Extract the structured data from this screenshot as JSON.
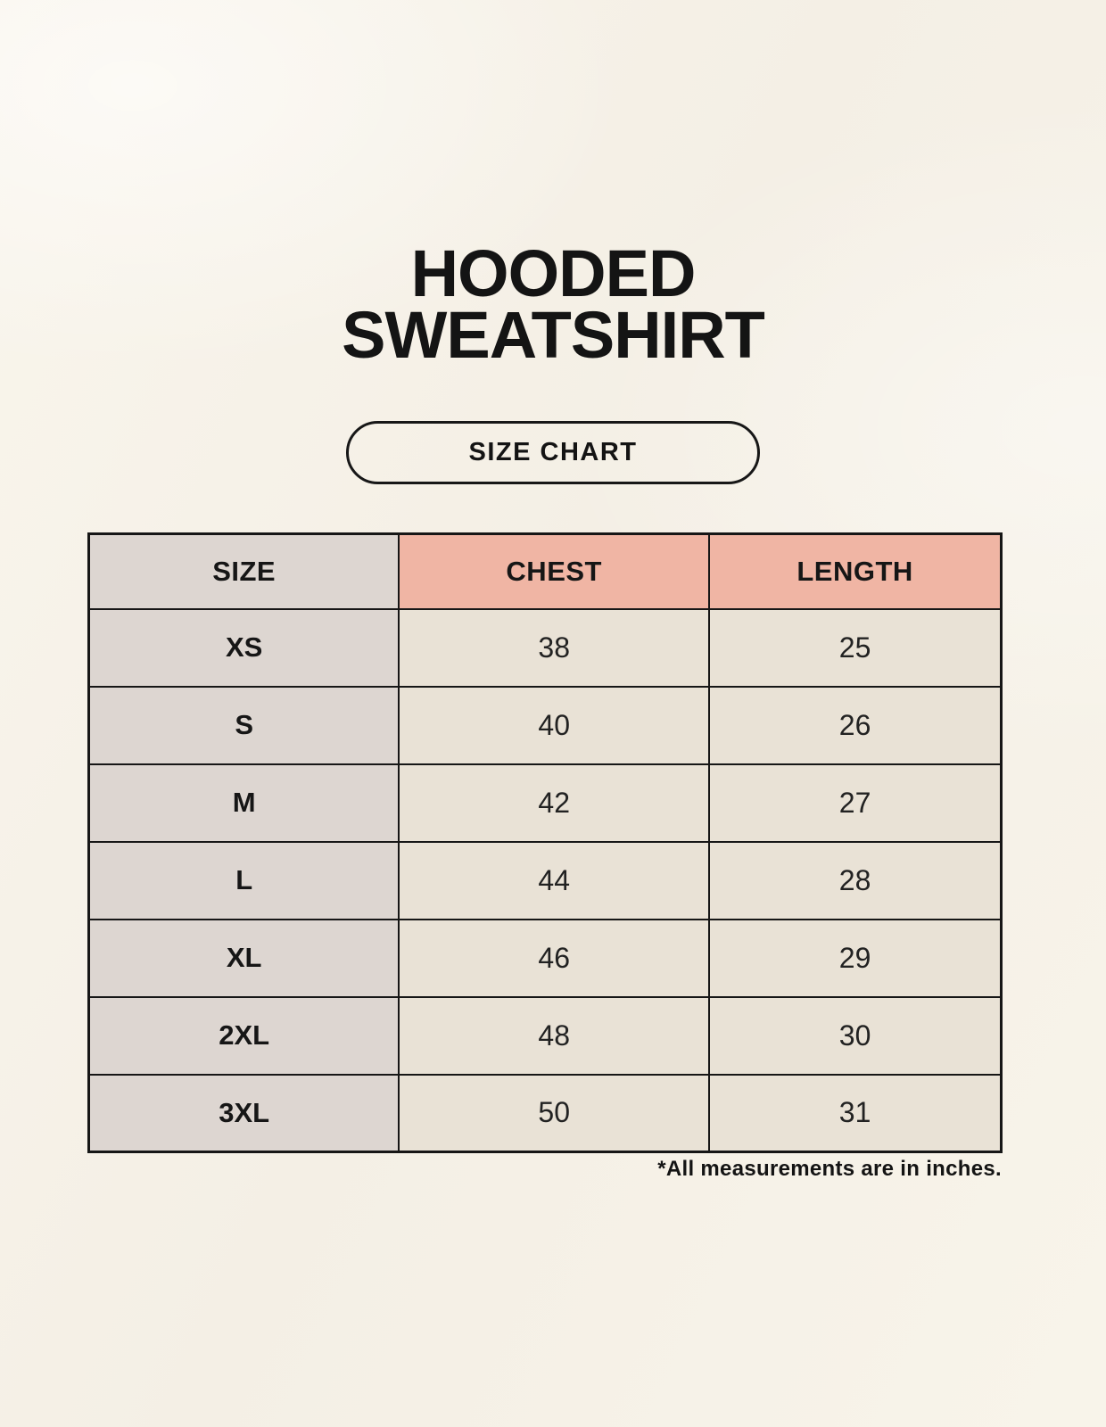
{
  "header": {
    "title_line1": "HOODED",
    "title_line2": "SWEATSHIRT",
    "size_chart_button": "SIZE CHART"
  },
  "table": {
    "columns": [
      "SIZE",
      "CHEST",
      "LENGTH"
    ],
    "rows": [
      {
        "size": "XS",
        "chest": "38",
        "length": "25"
      },
      {
        "size": "S",
        "chest": "40",
        "length": "26"
      },
      {
        "size": "M",
        "chest": "42",
        "length": "27"
      },
      {
        "size": "L",
        "chest": "44",
        "length": "28"
      },
      {
        "size": "XL",
        "chest": "46",
        "length": "29"
      },
      {
        "size": "2XL",
        "chest": "48",
        "length": "30"
      },
      {
        "size": "3XL",
        "chest": "50",
        "length": "31"
      }
    ]
  },
  "footnote": "*All measurements are in inches.",
  "colors": {
    "background": "#f7f3ea",
    "accent_salmon": "#f0b5a4",
    "cell_gray": "#ddd6d1",
    "cell_cream": "#e9e2d6",
    "table_border": "#161616",
    "text": "#1c1c1c"
  }
}
